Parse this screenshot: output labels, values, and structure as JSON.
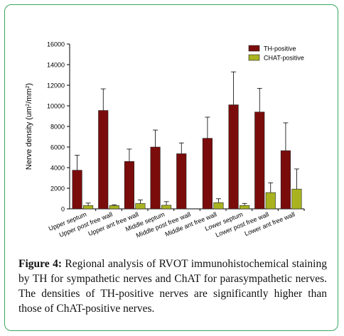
{
  "chart_data": {
    "type": "bar",
    "ylabel": "Nerve density (um²/mm²)",
    "ylabel_parts": {
      "main": "Nerve density (um",
      "sup1": "2",
      "mid": "/mm",
      "sup2": "2",
      "end": ")"
    },
    "ylim": [
      0,
      16000
    ],
    "yticks": [
      0,
      2000,
      4000,
      6000,
      8000,
      10000,
      12000,
      14000,
      16000
    ],
    "categories": [
      "Upper septum",
      "Upper post free wall",
      "Upper ant free wall",
      "Middle septum",
      "Middle post free wall",
      "Middle ant free wall",
      "Lower septum",
      "Lower post free wall",
      "Lower ant free wall"
    ],
    "series": [
      {
        "name": "TH-positive",
        "color": "#7b0c0c",
        "values": [
          3750,
          9550,
          4600,
          6000,
          5350,
          6850,
          10100,
          9400,
          5650
        ],
        "errors": [
          1450,
          2100,
          1200,
          1650,
          1050,
          2050,
          3200,
          2300,
          2700
        ]
      },
      {
        "name": "CHAT-positive",
        "color": "#a9b320",
        "values": [
          330,
          320,
          520,
          350,
          0,
          600,
          330,
          1580,
          1920
        ],
        "errors": [
          230,
          80,
          350,
          350,
          0,
          380,
          200,
          950,
          1950
        ]
      }
    ],
    "legend": "top-right",
    "grid": false
  },
  "caption": {
    "label": "Figure 4:",
    "text": " Regional analysis of RVOT immunohistochemical staining by TH for sympathetic nerves and ChAT for parasympathetic nerves. The densities of TH-positive nerves are significantly higher than those of ChAT-positive nerves."
  }
}
